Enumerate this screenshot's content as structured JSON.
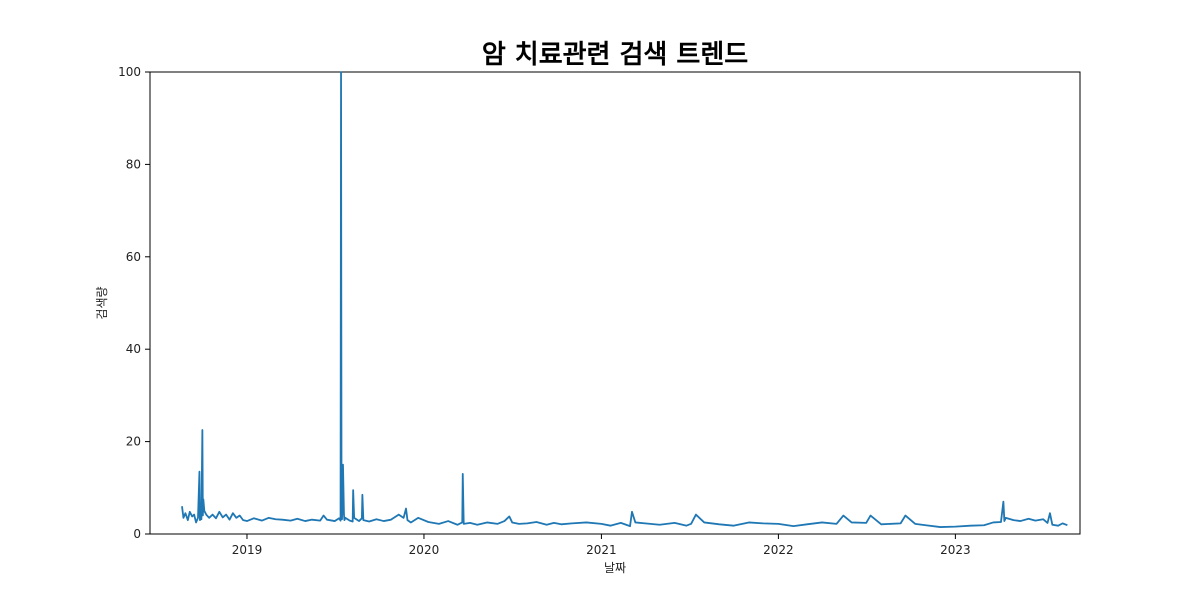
{
  "chart_data": {
    "type": "line",
    "title": "암 치료관련 검색 트렌드",
    "xlabel": "날짜",
    "ylabel": "검색량",
    "xlim": [
      "2018-06-15",
      "2023-09-15"
    ],
    "ylim": [
      0,
      100
    ],
    "x_ticks": [
      "2019",
      "2020",
      "2021",
      "2022",
      "2023"
    ],
    "y_ticks": [
      "0",
      "20",
      "40",
      "60",
      "80",
      "100"
    ],
    "grid": false,
    "legend": "none",
    "line_color": "#1f77b4",
    "series": [
      {
        "x": [
          "2018-08-20",
          "2018-08-23",
          "2018-08-27",
          "2018-09-01",
          "2018-09-05",
          "2018-09-10",
          "2018-09-14",
          "2018-09-18",
          "2018-09-22",
          "2018-09-25",
          "2018-09-26",
          "2018-09-27",
          "2018-09-29",
          "2018-10-01",
          "2018-10-02",
          "2018-10-03",
          "2018-10-05",
          "2018-10-09",
          "2018-10-15",
          "2018-10-22",
          "2018-10-29",
          "2018-11-05",
          "2018-11-12",
          "2018-11-19",
          "2018-11-26",
          "2018-12-03",
          "2018-12-10",
          "2018-12-17",
          "2018-12-24",
          "2019-01-01",
          "2019-01-15",
          "2019-02-01",
          "2019-02-15",
          "2019-03-01",
          "2019-03-15",
          "2019-04-01",
          "2019-04-15",
          "2019-05-01",
          "2019-05-15",
          "2019-06-01",
          "2019-06-08",
          "2019-06-15",
          "2019-07-01",
          "2019-07-10",
          "2019-07-13",
          "2019-07-14",
          "2019-07-15",
          "2019-07-16",
          "2019-07-18",
          "2019-07-20",
          "2019-07-21",
          "2019-07-23",
          "2019-08-01",
          "2019-08-07",
          "2019-08-08",
          "2019-08-10",
          "2019-08-20",
          "2019-08-26",
          "2019-08-27",
          "2019-08-29",
          "2019-09-10",
          "2019-09-25",
          "2019-10-10",
          "2019-10-25",
          "2019-11-10",
          "2019-11-20",
          "2019-11-25",
          "2019-11-28",
          "2019-12-05",
          "2019-12-20",
          "2020-01-10",
          "2020-02-01",
          "2020-02-20",
          "2020-03-10",
          "2020-03-20",
          "2020-03-21",
          "2020-03-23",
          "2020-04-05",
          "2020-04-20",
          "2020-05-10",
          "2020-06-01",
          "2020-06-15",
          "2020-06-25",
          "2020-07-01",
          "2020-07-15",
          "2020-08-01",
          "2020-08-20",
          "2020-09-10",
          "2020-09-25",
          "2020-10-10",
          "2020-11-01",
          "2020-12-01",
          "2021-01-01",
          "2021-01-20",
          "2021-02-10",
          "2021-03-01",
          "2021-03-05",
          "2021-03-12",
          "2021-04-01",
          "2021-05-01",
          "2021-06-01",
          "2021-06-25",
          "2021-07-05",
          "2021-07-15",
          "2021-08-01",
          "2021-09-01",
          "2021-10-01",
          "2021-11-01",
          "2021-12-01",
          "2022-01-01",
          "2022-02-01",
          "2022-03-01",
          "2022-04-01",
          "2022-05-01",
          "2022-05-15",
          "2022-06-01",
          "2022-07-01",
          "2022-07-10",
          "2022-08-01",
          "2022-09-10",
          "2022-09-20",
          "2022-10-10",
          "2022-11-01",
          "2022-12-01",
          "2023-01-01",
          "2023-02-01",
          "2023-03-01",
          "2023-03-20",
          "2023-04-05",
          "2023-04-10",
          "2023-04-12",
          "2023-04-15",
          "2023-05-01",
          "2023-05-15",
          "2023-06-01",
          "2023-06-15",
          "2023-07-01",
          "2023-07-10",
          "2023-07-15",
          "2023-07-20",
          "2023-08-01",
          "2023-08-10",
          "2023-08-20"
        ],
        "y": [
          6,
          3.5,
          4.5,
          3,
          4.8,
          3.8,
          4.2,
          2.5,
          3.5,
          13.5,
          3,
          5,
          3.2,
          22.5,
          4,
          7.5,
          5,
          4.2,
          3.5,
          4.2,
          3.4,
          4.8,
          3.6,
          4.2,
          3.1,
          4.5,
          3.5,
          4,
          3,
          2.8,
          3.4,
          2.9,
          3.5,
          3.2,
          3.1,
          2.9,
          3.3,
          2.8,
          3.1,
          2.9,
          4,
          3.1,
          2.8,
          3.4,
          2.9,
          100,
          5,
          3.2,
          15,
          4.2,
          3,
          3.5,
          2.9,
          2.7,
          9.5,
          3.5,
          2.8,
          3.4,
          8.5,
          3,
          2.7,
          3.2,
          2.8,
          3.1,
          4.2,
          3.5,
          5.5,
          3,
          2.5,
          3.5,
          2.6,
          2.2,
          2.8,
          2,
          2.5,
          13,
          2.2,
          2.4,
          2,
          2.5,
          2.2,
          2.8,
          3.8,
          2.5,
          2.2,
          2.3,
          2.6,
          2,
          2.4,
          2.1,
          2.3,
          2.5,
          2.2,
          1.8,
          2.4,
          1.7,
          4.8,
          2.5,
          2.3,
          2,
          2.4,
          1.8,
          2.2,
          4.2,
          2.5,
          2.1,
          1.8,
          2.5,
          2.3,
          2.2,
          1.7,
          2.1,
          2.5,
          2.2,
          4,
          2.5,
          2.4,
          4,
          2.1,
          2.3,
          4,
          2.2,
          1.9,
          1.5,
          1.6,
          1.8,
          1.9,
          2.5,
          2.6,
          7,
          2.8,
          3.5,
          3,
          2.8,
          3.3,
          2.9,
          3.2,
          2.4,
          4.5,
          2,
          1.8,
          2.3,
          1.9
        ]
      }
    ]
  }
}
